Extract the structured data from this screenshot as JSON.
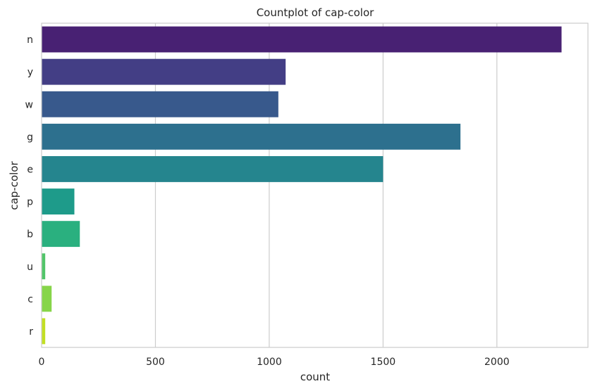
{
  "chart_data": {
    "type": "bar",
    "orientation": "horizontal",
    "title": "Countplot of cap-color",
    "xlabel": "count",
    "ylabel": "cap-color",
    "categories": [
      "n",
      "y",
      "w",
      "g",
      "e",
      "p",
      "b",
      "u",
      "c",
      "r"
    ],
    "values": [
      2284,
      1072,
      1040,
      1840,
      1500,
      144,
      168,
      16,
      44,
      16
    ],
    "xlim": [
      0,
      2400
    ],
    "xticks": [
      0,
      500,
      1000,
      1500,
      2000
    ],
    "grid": true,
    "colors": [
      "#482173",
      "#433e85",
      "#38598c",
      "#2d708e",
      "#25858e",
      "#1e9b8a",
      "#2ab07f",
      "#52c569",
      "#86d549",
      "#c2df23"
    ]
  }
}
